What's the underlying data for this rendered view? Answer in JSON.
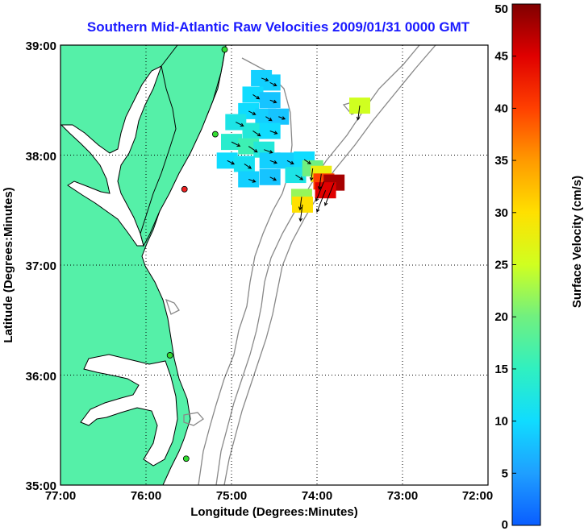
{
  "title": "Southern Mid-Atlantic Raw Velocities 2009/01/31 0000 GMT",
  "xlabel": "Longitude (Degrees:Minutes)",
  "ylabel": "Latitude (Degrees:Minutes)",
  "x_ticks": [
    "77:00",
    "76:00",
    "75:00",
    "74:00",
    "73:00",
    "72:00"
  ],
  "y_ticks": [
    "39:00",
    "38:00",
    "37:00",
    "36:00",
    "35:00"
  ],
  "colorbar": {
    "label": "Surface Velocity (cm/s)",
    "ticks": [
      "50",
      "45",
      "40",
      "35",
      "30",
      "25",
      "20",
      "15",
      "10",
      "5",
      "0"
    ],
    "range": [
      0,
      50
    ]
  },
  "colors": {
    "land": "#55f0a8",
    "ocean": "#ffffff",
    "coast": "#000000",
    "bathymetry": "#888888",
    "title": "#1a1aff"
  },
  "chart_data": {
    "type": "heatmap",
    "lon_range": [
      -77,
      -72
    ],
    "lat_range": [
      35,
      39
    ],
    "grid": true,
    "stations": [
      {
        "lon": -75.08,
        "lat": 38.96,
        "color": "#33dd33"
      },
      {
        "lon": -75.19,
        "lat": 38.19,
        "color": "#33dd33"
      },
      {
        "lon": -75.55,
        "lat": 37.69,
        "color": "#ee2222"
      },
      {
        "lon": -75.72,
        "lat": 36.18,
        "color": "#33dd33"
      },
      {
        "lon": -75.53,
        "lat": 35.24,
        "color": "#33dd33"
      }
    ],
    "velocity_cells": [
      {
        "lon": -74.65,
        "lat": 38.7,
        "speed": 9
      },
      {
        "lon": -74.55,
        "lat": 38.66,
        "speed": 9
      },
      {
        "lon": -74.75,
        "lat": 38.55,
        "speed": 10
      },
      {
        "lon": -74.55,
        "lat": 38.5,
        "speed": 8
      },
      {
        "lon": -74.8,
        "lat": 38.4,
        "speed": 10
      },
      {
        "lon": -74.6,
        "lat": 38.35,
        "speed": 9
      },
      {
        "lon": -74.45,
        "lat": 38.35,
        "speed": 8
      },
      {
        "lon": -74.95,
        "lat": 38.3,
        "speed": 12
      },
      {
        "lon": -74.75,
        "lat": 38.22,
        "speed": 13
      },
      {
        "lon": -74.55,
        "lat": 38.22,
        "speed": 10
      },
      {
        "lon": -75.0,
        "lat": 38.12,
        "speed": 14
      },
      {
        "lon": -74.8,
        "lat": 38.08,
        "speed": 16
      },
      {
        "lon": -74.62,
        "lat": 38.05,
        "speed": 13
      },
      {
        "lon": -75.05,
        "lat": 37.95,
        "speed": 10
      },
      {
        "lon": -74.85,
        "lat": 37.92,
        "speed": 11
      },
      {
        "lon": -74.55,
        "lat": 37.95,
        "speed": 9
      },
      {
        "lon": -74.35,
        "lat": 37.95,
        "speed": 9
      },
      {
        "lon": -74.15,
        "lat": 37.96,
        "speed": 10
      },
      {
        "lon": -74.8,
        "lat": 37.78,
        "speed": 9
      },
      {
        "lon": -74.55,
        "lat": 37.8,
        "speed": 8
      },
      {
        "lon": -74.25,
        "lat": 37.82,
        "speed": 12
      },
      {
        "lon": -74.05,
        "lat": 37.88,
        "speed": 20
      },
      {
        "lon": -73.95,
        "lat": 37.83,
        "speed": 28
      },
      {
        "lon": -73.92,
        "lat": 37.76,
        "speed": 40
      },
      {
        "lon": -73.8,
        "lat": 37.75,
        "speed": 48
      },
      {
        "lon": -73.9,
        "lat": 37.68,
        "speed": 45
      },
      {
        "lon": -74.18,
        "lat": 37.62,
        "speed": 22
      },
      {
        "lon": -74.17,
        "lat": 37.55,
        "speed": 30
      },
      {
        "lon": -73.5,
        "lat": 38.45,
        "speed": 25
      }
    ]
  }
}
